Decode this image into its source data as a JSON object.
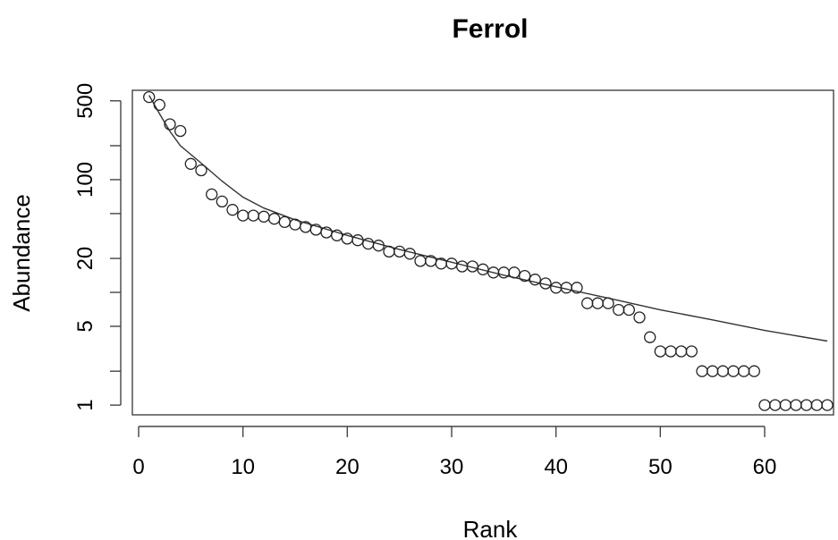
{
  "chart_data": {
    "type": "scatter",
    "title": "Ferrol",
    "xlabel": "Rank",
    "ylabel": "Abundance",
    "xlim": [
      -0.6,
      66.6
    ],
    "ylim": [
      0.82,
      620
    ],
    "log_y": true,
    "grid": false,
    "x_ticks": [
      0,
      10,
      20,
      30,
      40,
      50,
      60
    ],
    "y_ticks": [
      1,
      2,
      5,
      10,
      20,
      50,
      100,
      200,
      500
    ],
    "y_tick_labels": [
      "1",
      "",
      "5",
      "",
      "20",
      "",
      "100",
      "",
      "500"
    ],
    "series": [
      {
        "values": [
          [
            1,
            540
          ],
          [
            2,
            460
          ],
          [
            3,
            310
          ],
          [
            4,
            270
          ],
          [
            5,
            138
          ],
          [
            6,
            121
          ],
          [
            7,
            74
          ],
          [
            8,
            64
          ],
          [
            9,
            54
          ],
          [
            10,
            48
          ],
          [
            11,
            48
          ],
          [
            12,
            47
          ],
          [
            13,
            45
          ],
          [
            14,
            42
          ],
          [
            15,
            40
          ],
          [
            16,
            38
          ],
          [
            17,
            36
          ],
          [
            18,
            34
          ],
          [
            19,
            32
          ],
          [
            20,
            30
          ],
          [
            21,
            29
          ],
          [
            22,
            27
          ],
          [
            23,
            26
          ],
          [
            24,
            23
          ],
          [
            25,
            23
          ],
          [
            26,
            22
          ],
          [
            27,
            19
          ],
          [
            28,
            19
          ],
          [
            29,
            18
          ],
          [
            30,
            18
          ],
          [
            31,
            17
          ],
          [
            32,
            17
          ],
          [
            33,
            16
          ],
          [
            34,
            15
          ],
          [
            35,
            15
          ],
          [
            36,
            15
          ],
          [
            37,
            14
          ],
          [
            38,
            13
          ],
          [
            39,
            12
          ],
          [
            40,
            11
          ],
          [
            41,
            11
          ],
          [
            42,
            11
          ],
          [
            43,
            8
          ],
          [
            44,
            8
          ],
          [
            45,
            8
          ],
          [
            46,
            7
          ],
          [
            47,
            7
          ],
          [
            48,
            6
          ],
          [
            49,
            4
          ],
          [
            50,
            3
          ],
          [
            51,
            3
          ],
          [
            52,
            3
          ],
          [
            53,
            3
          ],
          [
            54,
            2
          ],
          [
            55,
            2
          ],
          [
            56,
            2
          ],
          [
            57,
            2
          ],
          [
            58,
            2
          ],
          [
            59,
            2
          ],
          [
            60,
            1
          ],
          [
            61,
            1
          ],
          [
            62,
            1
          ],
          [
            63,
            1
          ],
          [
            64,
            1
          ],
          [
            65,
            1
          ],
          [
            66,
            1
          ]
        ]
      },
      {
        "type": "line",
        "values": [
          [
            1,
            560
          ],
          [
            2,
            385
          ],
          [
            3,
            268
          ],
          [
            4,
            200
          ],
          [
            6,
            140
          ],
          [
            8,
            97
          ],
          [
            10,
            70
          ],
          [
            12,
            56
          ],
          [
            15,
            44
          ],
          [
            20,
            32
          ],
          [
            25,
            24
          ],
          [
            30,
            18.5
          ],
          [
            35,
            14.2
          ],
          [
            40,
            11.2
          ],
          [
            45,
            8.9
          ],
          [
            50,
            7.0
          ],
          [
            55,
            5.7
          ],
          [
            60,
            4.6
          ],
          [
            66,
            3.7
          ]
        ]
      }
    ]
  }
}
